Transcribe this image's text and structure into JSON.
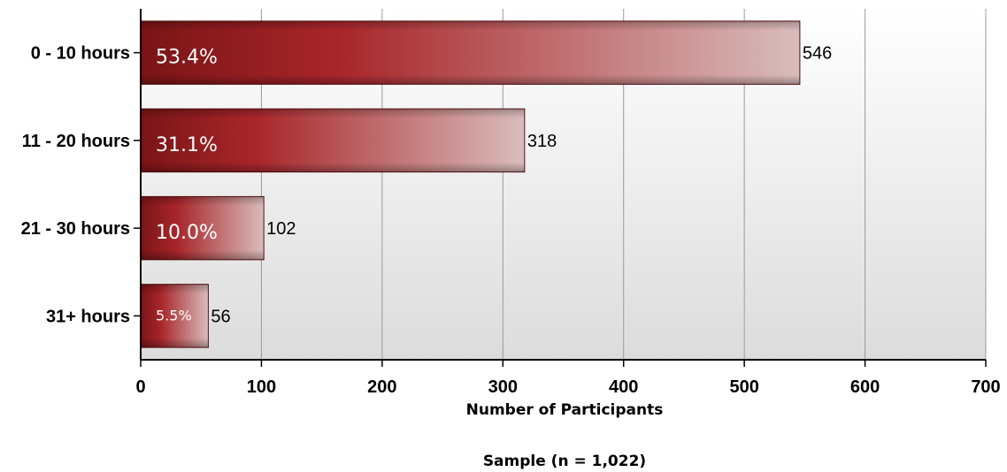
{
  "chart_data": {
    "type": "bar",
    "orientation": "horizontal",
    "categories": [
      "0 - 10 hours",
      "11 - 20 hours",
      "21 - 30 hours",
      "31+ hours"
    ],
    "values": [
      546,
      318,
      102,
      56
    ],
    "value_labels": [
      "546",
      "318",
      "102",
      "56"
    ],
    "percent_labels": [
      "53.4%",
      "31.1%",
      "10.0%",
      "5.5%"
    ],
    "xlabel": "Number of Participants",
    "xlim": [
      0,
      700
    ],
    "xticks": [
      0,
      100,
      200,
      300,
      400,
      500,
      600,
      700
    ],
    "note": "Sample (n = 1,022)",
    "grid": "vertical",
    "legend": "none",
    "colors": {
      "bar_dark": "#7a1416",
      "bar_mid": "#a8262a",
      "bar_light": "#d9bcbc",
      "plot_bg_top": "#ffffff",
      "plot_bg_bottom": "#dcdcdc",
      "grid": "#9a9a9a"
    }
  }
}
